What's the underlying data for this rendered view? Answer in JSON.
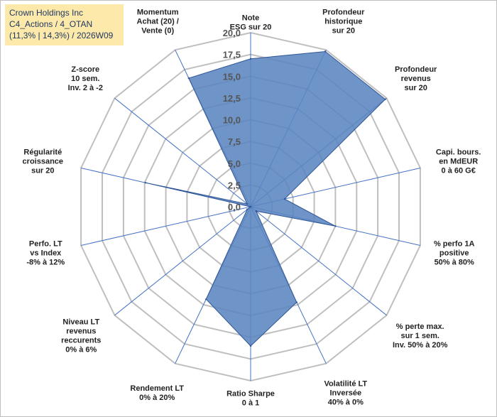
{
  "header": {
    "line1": "Crown Holdings Inc",
    "line2": "C4_Actions / 4_OTAN",
    "line3": "(11,3% | 14,3%) / 2026W09"
  },
  "colors": {
    "fill": "#5b85c0",
    "stroke": "#2f5597",
    "grid": "#bfbfbf",
    "spoke": "#4472c4"
  },
  "chart_data": {
    "type": "radar",
    "title": "",
    "rmax": 20,
    "ticks": [
      "0,0",
      "2,5",
      "5,0",
      "7,5",
      "10,0",
      "12,5",
      "15,0",
      "17,5",
      "20,0"
    ],
    "axes": [
      {
        "label": [
          "Note",
          "ESG sur 20"
        ],
        "value": 17
      },
      {
        "label": [
          "Profondeur",
          "historique",
          "sur 20"
        ],
        "value": 19.8
      },
      {
        "label": [
          "Profondeur",
          "revenus",
          "sur 20"
        ],
        "value": 19.8
      },
      {
        "label": [
          "Capi. bours.",
          "en MdEUR",
          "0 à 60 G€"
        ],
        "value": 4
      },
      {
        "label": [
          "% perfo 1A",
          "positive",
          "50% à 80%"
        ],
        "value": 10
      },
      {
        "label": [
          "% perte max.",
          "sur 1 sem.",
          "Inv. 50% à 20%"
        ],
        "value": 0.8
      },
      {
        "label": [
          "Volatilité LT",
          "Inversée",
          "40% à 0%"
        ],
        "value": 12.2
      },
      {
        "label": [
          "Ratio Sharpe",
          "0 à 1"
        ],
        "value": 16
      },
      {
        "label": [
          "Rendement LT",
          "0% à 20%"
        ],
        "value": 11.8
      },
      {
        "label": [
          "Niveau LT",
          "revenus",
          "reccurents",
          "0% à 6%"
        ],
        "value": 0.5
      },
      {
        "label": [
          "Perfo. LT",
          "vs Index",
          "-8% à 12%"
        ],
        "value": 0
      },
      {
        "label": [
          "Régularité",
          "croissance",
          "sur 20"
        ],
        "value": 12.4
      },
      {
        "label": [
          "Z-score",
          "10 sem.",
          "Inv. 2 à -2"
        ],
        "value": 0.5
      },
      {
        "label": [
          "Momentum",
          "Achat (20) /",
          "Vente (0)"
        ],
        "value": 16.4
      }
    ]
  }
}
